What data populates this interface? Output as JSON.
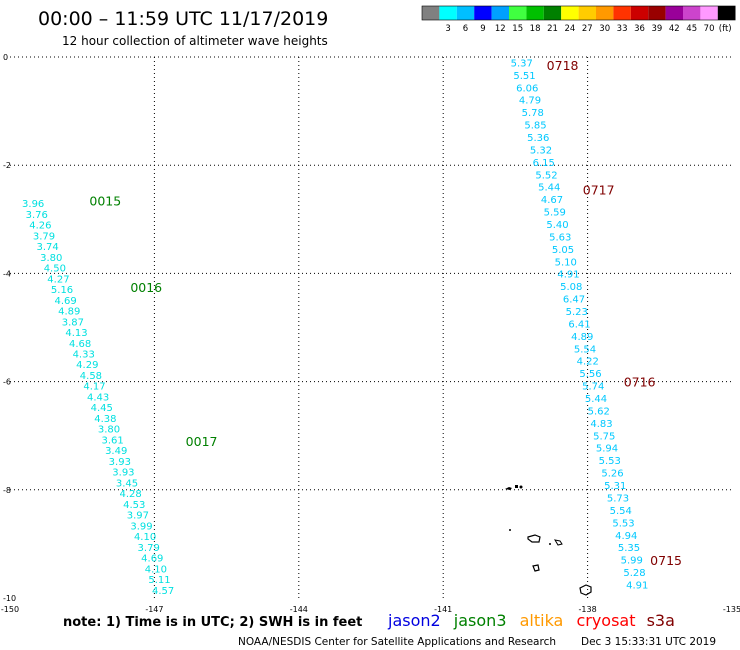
{
  "header": {
    "title": "00:00 – 11:59 UTC 11/17/2019",
    "subtitle": "12 hour collection of altimeter wave heights"
  },
  "colorbar": {
    "colors": [
      "#808080",
      "#00ffff",
      "#00bfff",
      "#0000ff",
      "#00a0ff",
      "#40ff40",
      "#00c000",
      "#008000",
      "#ffff00",
      "#ffcc00",
      "#ff9900",
      "#ff3300",
      "#cc0000",
      "#990000",
      "#990099",
      "#cc44cc",
      "#ff99ff",
      "#000000"
    ],
    "labels": [
      "3",
      "6",
      "9",
      "12",
      "15",
      "18",
      "21",
      "24",
      "27",
      "30",
      "33",
      "36",
      "39",
      "42",
      "45",
      "70"
    ],
    "unit": "(ft)"
  },
  "chart_data": {
    "type": "scatter",
    "xlim": [
      -150,
      -135
    ],
    "ylim": [
      -10,
      0
    ],
    "grid": true,
    "x_ticks": [
      "-150",
      "-147",
      "-144",
      "-141",
      "-138",
      "-135"
    ],
    "y_ticks": [
      "0",
      "-2",
      "-4",
      "-6",
      "-8",
      "-10"
    ],
    "tracks": [
      {
        "satellite": "jason3",
        "label_color": "#008000",
        "value_color": "#00e0e0",
        "start": [
          -149.75,
          -2.7
        ],
        "end": [
          -147.05,
          -9.85
        ],
        "values": [
          "3.96",
          "3.76",
          "4.26",
          "3.79",
          "3.74",
          "3.80",
          "4.50",
          "4.27",
          "5.16",
          "4.69",
          "4.89",
          "3.87",
          "4.13",
          "4.68",
          "4.33",
          "4.29",
          "4.58",
          "4.17",
          "4.43",
          "4.45",
          "4.38",
          "3.80",
          "3.61",
          "3.49",
          "3.93",
          "3.93",
          "3.45",
          "4.28",
          "4.53",
          "3.97",
          "3.99",
          "4.10",
          "3.79",
          "4.69",
          "4.10",
          "5.11",
          "4.57"
        ],
        "time_labels": [
          {
            "text": "0015",
            "lon": -148.35,
            "lat": -2.65
          },
          {
            "text": "0016",
            "lon": -147.5,
            "lat": -4.25
          },
          {
            "text": "0017",
            "lon": -146.35,
            "lat": -7.1
          }
        ]
      },
      {
        "satellite": "cryosat",
        "label_color": "#800000",
        "value_color": "#00c8ff",
        "start": [
          -139.6,
          -0.1
        ],
        "end": [
          -137.2,
          -9.75
        ],
        "values": [
          "5.37",
          "5.51",
          "6.06",
          "4.79",
          "5.78",
          "5.85",
          "5.36",
          "5.32",
          "6.15",
          "5.52",
          "5.44",
          "4.67",
          "5.59",
          "5.40",
          "5.63",
          "5.05",
          "5.10",
          "4.91",
          "5.08",
          "6.47",
          "5.23",
          "6.41",
          "4.89",
          "5.54",
          "4.22",
          "5.56",
          "5.74",
          "5.44",
          "5.62",
          "4.83",
          "5.75",
          "5.94",
          "5.53",
          "5.26",
          "5.31",
          "5.73",
          "5.54",
          "5.53",
          "4.94",
          "5.35",
          "5.99",
          "5.28",
          "4.91"
        ],
        "time_labels": [
          {
            "text": "0718",
            "lon": -138.85,
            "lat": -0.15
          },
          {
            "text": "0717",
            "lon": -138.1,
            "lat": -2.45
          },
          {
            "text": "0716",
            "lon": -137.25,
            "lat": -6.0
          },
          {
            "text": "0715",
            "lon": -136.7,
            "lat": -9.3
          }
        ]
      }
    ]
  },
  "legend": {
    "note": "note:  1) Time is in UTC;  2) SWH is in feet",
    "items": [
      {
        "name": "jason2",
        "color": "#0000e0"
      },
      {
        "name": "jason3",
        "color": "#008000"
      },
      {
        "name": "altika",
        "color": "#ff9900"
      },
      {
        "name": "cryosat",
        "color": "#ff0000"
      },
      {
        "name": "s3a",
        "color": "#800000"
      }
    ]
  },
  "footer": {
    "credit": "NOAA/NESDIS Center for Satellite Applications and Research",
    "timestamp": "Dec  3 15:33:31 UTC 2019"
  }
}
